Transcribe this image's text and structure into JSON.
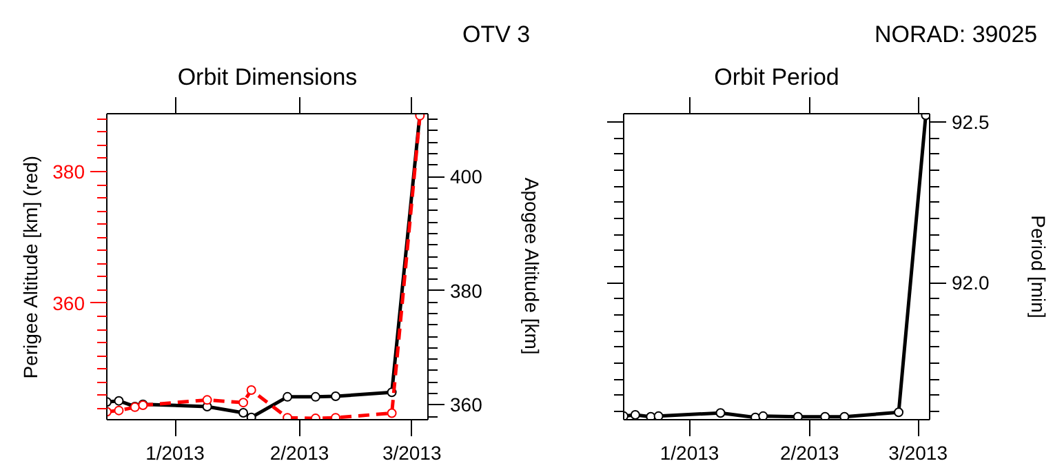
{
  "chart_data": [
    {
      "type": "line",
      "title": "Orbit Dimensions",
      "ylabel": "Perigee Altitude [km] (red)",
      "y2label": "Apogee Altitude [km]",
      "annotations": [
        "OTV 3"
      ],
      "x": [
        "2012-12-15",
        "2012-12-18",
        "2012-12-22",
        "2012-12-24",
        "2013-01-09",
        "2013-01-18",
        "2013-01-20",
        "2013-01-29",
        "2013-02-05",
        "2013-02-10",
        "2013-02-24",
        "2013-03-03"
      ],
      "xticks": [
        {
          "value": "2013-01-01",
          "label": "1/2013"
        },
        {
          "value": "2013-02-01",
          "label": "2/2013"
        },
        {
          "value": "2013-03-01",
          "label": "3/2013"
        }
      ],
      "yticks": [
        {
          "value": 344,
          "label": null
        },
        {
          "value": 346,
          "label": null
        },
        {
          "value": 348,
          "label": null
        },
        {
          "value": 350,
          "label": null
        },
        {
          "value": 352,
          "label": null
        },
        {
          "value": 354,
          "label": null
        },
        {
          "value": 356,
          "label": null
        },
        {
          "value": 358,
          "label": null
        },
        360,
        {
          "value": 362,
          "label": null
        },
        {
          "value": 364,
          "label": null
        },
        {
          "value": 366,
          "label": null
        },
        {
          "value": 368,
          "label": null
        },
        {
          "value": 370,
          "label": null
        },
        {
          "value": 372,
          "label": null
        },
        {
          "value": 374,
          "label": null
        },
        {
          "value": 376,
          "label": null
        },
        {
          "value": 378,
          "label": null
        },
        380,
        {
          "value": 382,
          "label": null
        },
        {
          "value": 384,
          "label": null
        },
        {
          "value": 386,
          "label": null
        },
        {
          "value": 388,
          "label": null
        }
      ],
      "y2ticks": [
        {
          "value": 358,
          "label": null
        },
        360,
        {
          "value": 362,
          "label": null
        },
        {
          "value": 364,
          "label": null
        },
        {
          "value": 366,
          "label": null
        },
        {
          "value": 368,
          "label": null
        },
        {
          "value": 370,
          "label": null
        },
        {
          "value": 372,
          "label": null
        },
        {
          "value": 374,
          "label": null
        },
        {
          "value": 376,
          "label": null
        },
        {
          "value": 378,
          "label": null
        },
        380,
        {
          "value": 382,
          "label": null
        },
        {
          "value": 384,
          "label": null
        },
        {
          "value": 386,
          "label": null
        },
        {
          "value": 388,
          "label": null
        },
        {
          "value": 390,
          "label": null
        },
        {
          "value": 392,
          "label": null
        },
        {
          "value": 394,
          "label": null
        },
        {
          "value": 396,
          "label": null
        },
        {
          "value": 398,
          "label": null
        },
        400,
        {
          "value": 402,
          "label": null
        },
        {
          "value": 404,
          "label": null
        },
        {
          "value": 406,
          "label": null
        },
        {
          "value": 408,
          "label": null
        },
        {
          "value": 410,
          "label": null
        }
      ],
      "xlim": [
        "2012-12-15",
        "2013-03-05"
      ],
      "ylim": [
        342.3,
        388.8
      ],
      "y2lim": [
        357.4,
        411
      ],
      "marker": "circle",
      "grid": false,
      "series": [
        {
          "color": "#ff0000",
          "axis": "y",
          "line_style": "dashed",
          "values": [
            343.5,
            343.7,
            344.2,
            344.5,
            345.3,
            344.9,
            346.8,
            342.6,
            342.5,
            342.6,
            343.3,
            388.5
          ]
        },
        {
          "color": "#000000",
          "axis": "y2",
          "line_style": "solid",
          "values": [
            360.5,
            360.7,
            359.7,
            360.1,
            359.7,
            358.6,
            357.8,
            361.4,
            361.4,
            361.5,
            362.2,
            411
          ]
        }
      ]
    },
    {
      "type": "line",
      "title": "Orbit Period",
      "y2label": "Period [min]",
      "annotations": [
        "NORAD: 39025"
      ],
      "x": [
        "2012-12-15",
        "2012-12-18",
        "2012-12-22",
        "2012-12-24",
        "2013-01-09",
        "2013-01-18",
        "2013-01-20",
        "2013-01-29",
        "2013-02-05",
        "2013-02-10",
        "2013-02-24",
        "2013-03-03"
      ],
      "xticks": [
        {
          "value": "2013-01-01",
          "label": "1/2013"
        },
        {
          "value": "2013-02-01",
          "label": "2/2013"
        },
        {
          "value": "2013-03-01",
          "label": "3/2013"
        }
      ],
      "y2ticks": [
        {
          "value": 91.6,
          "label": null
        },
        {
          "value": 91.65,
          "label": null
        },
        {
          "value": 91.7,
          "label": null
        },
        {
          "value": 91.75,
          "label": null
        },
        {
          "value": 91.8,
          "label": null
        },
        {
          "value": 91.85,
          "label": null
        },
        {
          "value": 91.9,
          "label": null
        },
        {
          "value": 91.95,
          "label": null
        },
        {
          "value": 92.0,
          "label": "92.0"
        },
        {
          "value": 92.05,
          "label": null
        },
        {
          "value": 92.1,
          "label": null
        },
        {
          "value": 92.15,
          "label": null
        },
        {
          "value": 92.2,
          "label": null
        },
        {
          "value": 92.25,
          "label": null
        },
        {
          "value": 92.3,
          "label": null
        },
        {
          "value": 92.35,
          "label": null
        },
        {
          "value": 92.4,
          "label": null
        },
        {
          "value": 92.45,
          "label": null
        },
        {
          "value": 92.5,
          "label": "92.5"
        }
      ],
      "xlim": [
        "2012-12-15",
        "2013-03-04"
      ],
      "y2lim": [
        91.575,
        92.525
      ],
      "marker": "circle",
      "grid": false,
      "series": [
        {
          "color": "#000000",
          "axis": "y2",
          "line_style": "solid",
          "values": [
            91.586,
            91.59,
            91.584,
            91.586,
            91.596,
            91.582,
            91.586,
            91.584,
            91.584,
            91.584,
            91.598,
            92.52
          ]
        }
      ]
    }
  ]
}
